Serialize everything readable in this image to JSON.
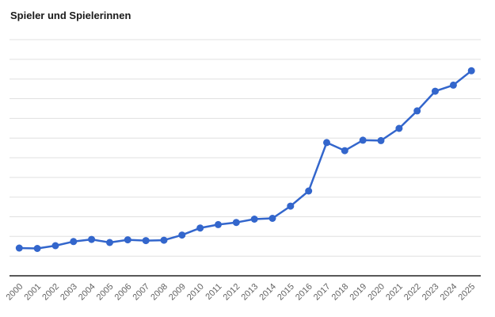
{
  "header": {
    "title": "Spieler und Spielerinnen"
  },
  "colors": {
    "line": "#3366CC",
    "point": "#3366CC",
    "gridline": "#e0e0e0",
    "axis": "#222222",
    "tick_label": "#636363",
    "title": "#1a1a1a",
    "background": "#ffffff"
  },
  "chart_data": {
    "type": "line",
    "title": "Spieler und Spielerinnen",
    "xlabel": "",
    "ylabel": "",
    "x": [
      "2000",
      "2001",
      "2002",
      "2003",
      "2004",
      "2005",
      "2006",
      "2007",
      "2008",
      "2009",
      "2010",
      "2011",
      "2012",
      "2013",
      "2014",
      "2015",
      "2016",
      "2017",
      "2018",
      "2019",
      "2020",
      "2021",
      "2022",
      "2023",
      "2024",
      "2025"
    ],
    "series": [
      {
        "name": "Spieler und Spielerinnen",
        "values": [
          1.41,
          1.39,
          1.53,
          1.74,
          1.85,
          1.69,
          1.83,
          1.79,
          1.81,
          2.07,
          2.43,
          2.6,
          2.71,
          2.88,
          2.92,
          3.54,
          4.31,
          6.77,
          6.36,
          6.89,
          6.87,
          7.49,
          8.38,
          9.38,
          9.69,
          10.42
        ]
      }
    ],
    "note": "y-axis has no visible tick labels; values estimated in gridline units (1 unit = 1 gridline interval)",
    "ylim": [
      0,
      12
    ],
    "y_tick_labels_visible": false,
    "grid": true,
    "gridline_count": 12,
    "legend": "none",
    "x_tick_rotation_deg": -45,
    "point_markers": true
  }
}
